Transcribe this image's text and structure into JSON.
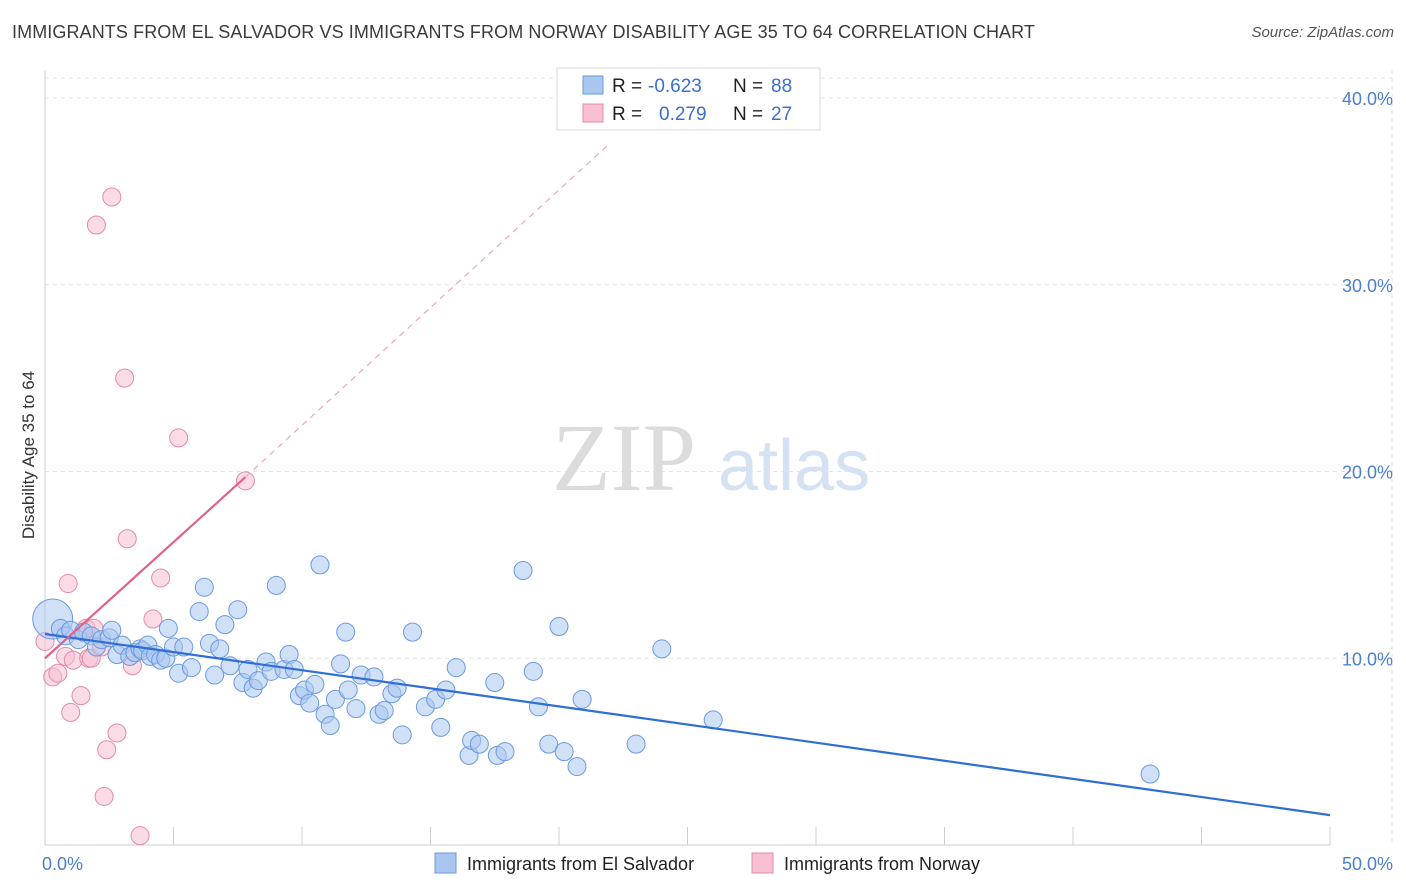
{
  "header": {
    "title": "IMMIGRANTS FROM EL SALVADOR VS IMMIGRANTS FROM NORWAY DISABILITY AGE 35 TO 64 CORRELATION CHART",
    "source": "Source: ZipAtlas.com"
  },
  "watermark": {
    "zip": "ZIP",
    "atlas": "atlas"
  },
  "colors": {
    "blue_fill": "#a9c6f0",
    "blue_stroke": "#6a9ae0",
    "blue_line": "#2f6fd4",
    "pink_fill": "#f7bfd1",
    "pink_stroke": "#e48aa8",
    "pink_line": "#e0628f",
    "grid": "#e3e3e3",
    "axis_text": "#4a7fd0"
  },
  "legend": {
    "rows": [
      {
        "r_label": "R = ",
        "r_value": "-0.623",
        "n_label": "N = ",
        "n_value": "88"
      },
      {
        "r_label": "R = ",
        "r_value": "0.279",
        "n_label": "N = ",
        "n_value": "27"
      }
    ]
  },
  "chart_data": {
    "type": "scatter",
    "title": "IMMIGRANTS FROM EL SALVADOR VS IMMIGRANTS FROM NORWAY DISABILITY AGE 35 TO 64 CORRELATION CHART",
    "xlabel": "",
    "ylabel": "Disability Age 35 to 64",
    "xlim": [
      0,
      50
    ],
    "ylim": [
      0,
      41.5
    ],
    "x_tick_labels": [
      "0.0%",
      "50.0%"
    ],
    "x_minor_ticks": [
      0,
      5,
      10,
      15,
      20,
      25,
      30,
      35,
      40,
      45,
      50
    ],
    "y_ticks": [
      10,
      20,
      30,
      40
    ],
    "y_tick_labels": [
      "10.0%",
      "20.0%",
      "30.0%",
      "40.0%"
    ],
    "grid": true,
    "legend_position": "top-center",
    "series": [
      {
        "name": "Immigrants from El Salvador",
        "color": "blue",
        "r": -0.623,
        "n": 88,
        "trend": {
          "x": [
            0,
            50
          ],
          "y": [
            11.3,
            1.6
          ],
          "style": "solid"
        },
        "points": [
          [
            0.3,
            12.1
          ],
          [
            0.6,
            11.6
          ],
          [
            0.8,
            11.2
          ],
          [
            1.0,
            11.5
          ],
          [
            1.3,
            11.0
          ],
          [
            1.5,
            11.4
          ],
          [
            1.8,
            11.2
          ],
          [
            2.0,
            10.6
          ],
          [
            2.2,
            11.0
          ],
          [
            2.5,
            11.1
          ],
          [
            2.6,
            11.5
          ],
          [
            2.8,
            10.2
          ],
          [
            3.0,
            10.7
          ],
          [
            3.3,
            10.1
          ],
          [
            3.5,
            10.3
          ],
          [
            3.7,
            10.5
          ],
          [
            3.8,
            10.4
          ],
          [
            4.0,
            10.7
          ],
          [
            4.1,
            10.1
          ],
          [
            4.3,
            10.2
          ],
          [
            4.5,
            9.9
          ],
          [
            4.7,
            10.0
          ],
          [
            4.8,
            11.6
          ],
          [
            5.0,
            10.6
          ],
          [
            5.2,
            9.2
          ],
          [
            5.4,
            10.6
          ],
          [
            5.7,
            9.5
          ],
          [
            6.0,
            12.5
          ],
          [
            6.2,
            13.8
          ],
          [
            6.4,
            10.8
          ],
          [
            6.6,
            9.1
          ],
          [
            6.8,
            10.5
          ],
          [
            7.0,
            11.8
          ],
          [
            7.2,
            9.6
          ],
          [
            7.5,
            12.6
          ],
          [
            7.7,
            8.7
          ],
          [
            7.9,
            9.4
          ],
          [
            8.1,
            8.4
          ],
          [
            8.3,
            8.8
          ],
          [
            8.6,
            9.8
          ],
          [
            8.8,
            9.3
          ],
          [
            9.0,
            13.9
          ],
          [
            9.3,
            9.4
          ],
          [
            9.5,
            10.2
          ],
          [
            9.7,
            9.4
          ],
          [
            9.9,
            8.0
          ],
          [
            10.1,
            8.3
          ],
          [
            10.3,
            7.6
          ],
          [
            10.5,
            8.6
          ],
          [
            10.7,
            15.0
          ],
          [
            10.9,
            7.0
          ],
          [
            11.1,
            6.4
          ],
          [
            11.3,
            7.8
          ],
          [
            11.5,
            9.7
          ],
          [
            11.7,
            11.4
          ],
          [
            11.8,
            8.3
          ],
          [
            12.1,
            7.3
          ],
          [
            12.3,
            9.1
          ],
          [
            12.8,
            9.0
          ],
          [
            13.0,
            7.0
          ],
          [
            13.2,
            7.2
          ],
          [
            13.5,
            8.1
          ],
          [
            13.7,
            8.4
          ],
          [
            13.9,
            5.9
          ],
          [
            14.3,
            11.4
          ],
          [
            14.8,
            7.4
          ],
          [
            15.2,
            7.8
          ],
          [
            15.4,
            6.3
          ],
          [
            15.6,
            8.3
          ],
          [
            16.0,
            9.5
          ],
          [
            16.5,
            4.8
          ],
          [
            16.6,
            5.6
          ],
          [
            16.9,
            5.4
          ],
          [
            17.5,
            8.7
          ],
          [
            17.6,
            4.8
          ],
          [
            17.9,
            5.0
          ],
          [
            18.6,
            14.7
          ],
          [
            19.0,
            9.3
          ],
          [
            19.2,
            7.4
          ],
          [
            19.6,
            5.4
          ],
          [
            20.0,
            11.7
          ],
          [
            20.2,
            5.0
          ],
          [
            20.7,
            4.2
          ],
          [
            20.9,
            7.8
          ],
          [
            23.0,
            5.4
          ],
          [
            24.0,
            10.5
          ],
          [
            26.0,
            6.7
          ],
          [
            43.0,
            3.8
          ]
        ]
      },
      {
        "name": "Immigrants from Norway",
        "color": "pink",
        "r": 0.279,
        "n": 27,
        "trend": {
          "x": [
            0,
            7.8
          ],
          "y": [
            10.0,
            19.7
          ],
          "style": "solid",
          "extension": {
            "x": [
              7.8,
              22.0
            ],
            "y": [
              19.7,
              37.6
            ],
            "style": "dashed"
          }
        },
        "points": [
          [
            0.0,
            10.9
          ],
          [
            0.3,
            9.0
          ],
          [
            0.5,
            9.2
          ],
          [
            0.8,
            10.1
          ],
          [
            0.9,
            14.0
          ],
          [
            1.0,
            7.1
          ],
          [
            1.1,
            9.9
          ],
          [
            1.4,
            8.0
          ],
          [
            1.5,
            11.4
          ],
          [
            1.6,
            11.6
          ],
          [
            1.7,
            10.0
          ],
          [
            1.8,
            10.0
          ],
          [
            1.9,
            11.6
          ],
          [
            2.0,
            33.2
          ],
          [
            2.3,
            2.6
          ],
          [
            2.4,
            5.1
          ],
          [
            2.6,
            34.7
          ],
          [
            2.8,
            6.0
          ],
          [
            3.1,
            25.0
          ],
          [
            3.2,
            16.4
          ],
          [
            3.4,
            9.6
          ],
          [
            3.7,
            0.5
          ],
          [
            4.2,
            12.1
          ],
          [
            4.5,
            14.3
          ],
          [
            5.2,
            21.8
          ],
          [
            7.8,
            19.5
          ],
          [
            2.2,
            10.6
          ]
        ]
      }
    ]
  },
  "bottom_legend": {
    "items": [
      {
        "label": "Immigrants from El Salvador",
        "color": "blue"
      },
      {
        "label": "Immigrants from Norway",
        "color": "pink"
      }
    ]
  }
}
